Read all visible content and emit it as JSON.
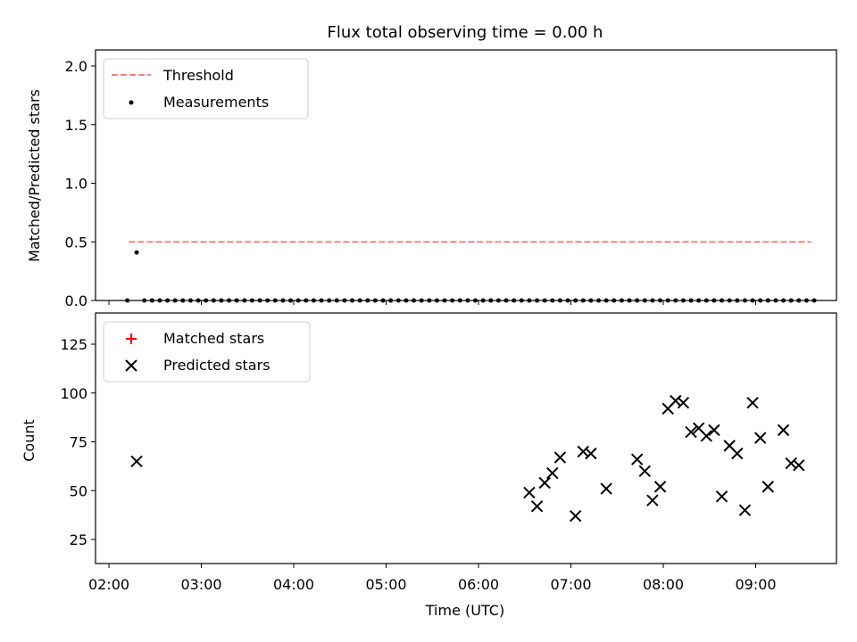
{
  "chart_data": [
    {
      "type": "scatter",
      "title": "Flux total observing time = 0.00 h",
      "xlabel": "",
      "ylabel": "Matched/Predicted stars",
      "xlim": [
        "02:00",
        "09:55"
      ],
      "ylim": [
        0,
        2.1
      ],
      "y_ticks": [
        "0.0",
        "0.5",
        "1.0",
        "1.5",
        "2.0"
      ],
      "x_ticks": [
        "02:00",
        "03:00",
        "04:00",
        "05:00",
        "06:00",
        "07:00",
        "08:00",
        "09:00"
      ],
      "legend_position": "top-left",
      "legend": [
        "Threshold",
        "Measurements"
      ],
      "threshold": {
        "name": "Threshold",
        "value": 0.5,
        "x": [
          "02:13",
          "09:36"
        ],
        "color": "#ff8080"
      },
      "series": [
        {
          "name": "Measurements",
          "color": "#000000",
          "x": [
            "02:12",
            "02:18",
            "02:23",
            "02:28",
            "02:33",
            "02:38",
            "02:43",
            "02:48",
            "02:53",
            "02:58",
            "03:03",
            "03:08",
            "03:13",
            "03:18",
            "03:23",
            "03:28",
            "03:33",
            "03:38",
            "03:43",
            "03:48",
            "03:53",
            "03:58",
            "04:03",
            "04:08",
            "04:13",
            "04:18",
            "04:23",
            "04:28",
            "04:33",
            "04:38",
            "04:43",
            "04:48",
            "04:53",
            "04:58",
            "05:03",
            "05:08",
            "05:13",
            "05:18",
            "05:23",
            "05:28",
            "05:33",
            "05:38",
            "05:43",
            "05:48",
            "05:53",
            "05:58",
            "06:03",
            "06:08",
            "06:13",
            "06:18",
            "06:23",
            "06:28",
            "06:33",
            "06:38",
            "06:43",
            "06:48",
            "06:53",
            "06:58",
            "07:03",
            "07:08",
            "07:13",
            "07:18",
            "07:23",
            "07:28",
            "07:33",
            "07:38",
            "07:43",
            "07:48",
            "07:53",
            "07:58",
            "08:03",
            "08:08",
            "08:13",
            "08:18",
            "08:23",
            "08:28",
            "08:33",
            "08:38",
            "08:43",
            "08:48",
            "08:53",
            "08:58",
            "09:03",
            "09:08",
            "09:13",
            "09:18",
            "09:23",
            "09:28",
            "09:33",
            "09:38"
          ],
          "values": [
            0,
            0.41,
            0,
            0,
            0,
            0,
            0,
            0,
            0,
            0,
            0,
            0,
            0,
            0,
            0,
            0,
            0,
            0,
            0,
            0,
            0,
            0,
            0,
            0,
            0,
            0,
            0,
            0,
            0,
            0,
            0,
            0,
            0,
            0,
            0,
            0,
            0,
            0,
            0,
            0,
            0,
            0,
            0,
            0,
            0,
            0,
            0,
            0,
            0,
            0,
            0,
            0,
            0,
            0,
            0,
            0,
            0,
            0,
            0,
            0,
            0,
            0,
            0,
            0,
            0,
            0,
            0,
            0,
            0,
            0,
            0,
            0,
            0,
            0,
            0,
            0,
            0,
            0,
            0,
            0,
            0,
            0,
            0,
            0,
            0,
            0,
            0,
            0,
            0,
            0
          ]
        }
      ]
    },
    {
      "type": "scatter",
      "title": "",
      "xlabel": "Time (UTC)",
      "ylabel": "Count",
      "xlim": [
        "02:00",
        "09:55"
      ],
      "ylim": [
        12,
        140
      ],
      "y_ticks": [
        "25",
        "50",
        "75",
        "100",
        "125"
      ],
      "x_ticks": [
        "02:00",
        "03:00",
        "04:00",
        "05:00",
        "06:00",
        "07:00",
        "08:00",
        "09:00"
      ],
      "legend_position": "top-left",
      "legend": [
        "Matched stars",
        "Predicted stars"
      ],
      "series": [
        {
          "name": "Matched stars",
          "marker": "+",
          "color": "#ff0000",
          "x": [],
          "values": []
        },
        {
          "name": "Predicted stars",
          "marker": "x",
          "color": "#000000",
          "x": [
            "02:18",
            "06:33",
            "06:38",
            "06:43",
            "06:48",
            "06:53",
            "07:03",
            "07:08",
            "07:13",
            "07:23",
            "07:43",
            "07:48",
            "07:53",
            "07:58",
            "08:03",
            "08:08",
            "08:13",
            "08:18",
            "08:23",
            "08:28",
            "08:33",
            "08:38",
            "08:43",
            "08:48",
            "08:53",
            "08:58",
            "09:03",
            "09:08",
            "09:18",
            "09:23",
            "09:28"
          ],
          "values": [
            65,
            49,
            42,
            54,
            59,
            67,
            37,
            70,
            69,
            51,
            66,
            60,
            45,
            52,
            92,
            96,
            95,
            80,
            82,
            78,
            81,
            47,
            73,
            69,
            40,
            95,
            77,
            52,
            81,
            64,
            63
          ]
        }
      ]
    }
  ]
}
